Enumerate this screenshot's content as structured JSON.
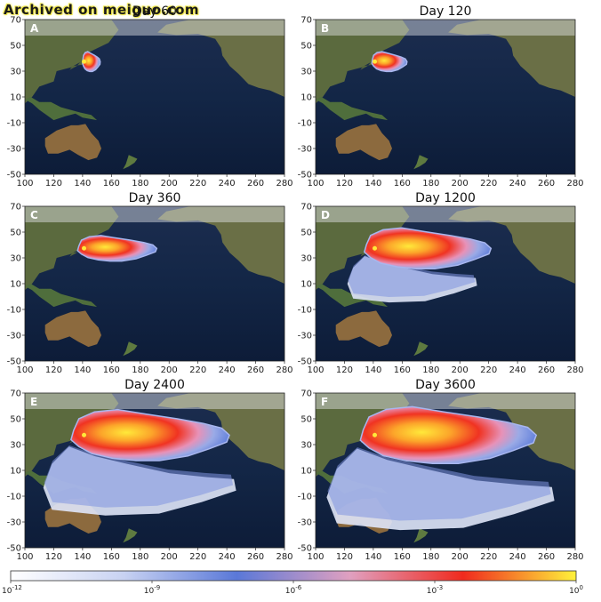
{
  "watermark": "Archived on meiguo.com",
  "chart_data": {
    "type": "heatmap",
    "xlim": [
      100,
      280
    ],
    "ylim": [
      -50,
      70
    ],
    "xticks": [
      100,
      120,
      140,
      160,
      180,
      200,
      220,
      240,
      260,
      280
    ],
    "yticks": [
      70,
      50,
      30,
      10,
      -10,
      -30,
      -50
    ],
    "source_point": {
      "lon": 141,
      "lat": 37.4
    },
    "panels": [
      {
        "label": "A",
        "title": "Day 60",
        "spread": 0.1
      },
      {
        "label": "B",
        "title": "Day 120",
        "spread": 0.2
      },
      {
        "label": "C",
        "title": "Day 360",
        "spread": 0.45
      },
      {
        "label": "D",
        "title": "Day 1200",
        "spread": 0.72
      },
      {
        "label": "E",
        "title": "Day 2400",
        "spread": 0.9
      },
      {
        "label": "F",
        "title": "Day 3600",
        "spread": 1.0
      }
    ],
    "colorbar": {
      "scale": "log",
      "ticks": [
        "10^-12",
        "10^-9",
        "10^-6",
        "10^-3",
        "10^0"
      ],
      "colors": [
        "#ffffff",
        "#c8d2f2",
        "#5a78d8",
        "#e0a0c0",
        "#f02a1e",
        "#fff23a"
      ]
    }
  }
}
